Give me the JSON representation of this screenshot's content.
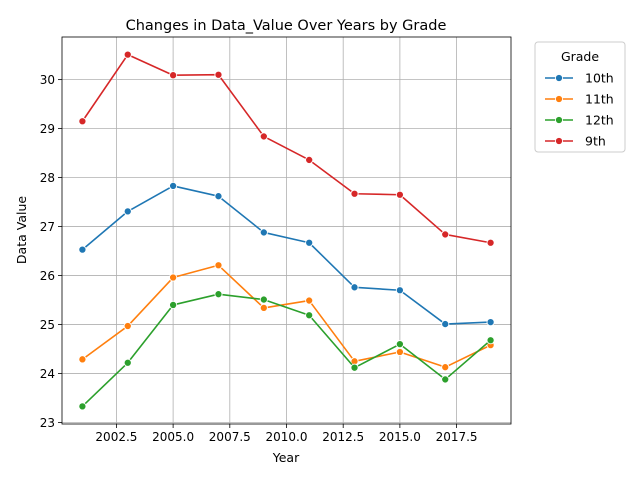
{
  "chart_data": {
    "type": "line",
    "title": "Changes in Data_Value Over Years by Grade",
    "xlabel": "Year",
    "ylabel": "Data Value",
    "x": [
      2001,
      2003,
      2005,
      2007,
      2009,
      2011,
      2013,
      2015,
      2017,
      2019
    ],
    "xlim": [
      2000.1,
      2019.9
    ],
    "ylim": [
      22.97,
      30.87
    ],
    "x_ticks": [
      2002.5,
      2005.0,
      2007.5,
      2010.0,
      2012.5,
      2015.0,
      2017.5
    ],
    "x_tick_labels": [
      "2002.5",
      "2005.0",
      "2007.5",
      "2010.0",
      "2012.5",
      "2015.0",
      "2017.5"
    ],
    "y_ticks": [
      23,
      24,
      25,
      26,
      27,
      28,
      29,
      30
    ],
    "y_tick_labels": [
      "23",
      "24",
      "25",
      "26",
      "27",
      "28",
      "29",
      "30"
    ],
    "grid": true,
    "legend": {
      "title": "Grade",
      "placement": "outside-top-right"
    },
    "series": [
      {
        "name": "10th",
        "color": "#1f77b4",
        "values": [
          26.53,
          27.31,
          27.83,
          27.62,
          26.88,
          26.67,
          25.76,
          25.7,
          25.01,
          25.05
        ]
      },
      {
        "name": "11th",
        "color": "#ff7f0e",
        "values": [
          24.29,
          24.97,
          25.96,
          26.21,
          25.34,
          25.49,
          24.25,
          24.44,
          24.13,
          24.58
        ]
      },
      {
        "name": "12th",
        "color": "#2ca02c",
        "values": [
          23.33,
          24.22,
          25.4,
          25.62,
          25.51,
          25.19,
          24.12,
          24.6,
          23.88,
          24.68
        ]
      },
      {
        "name": "9th",
        "color": "#d62728",
        "values": [
          29.15,
          30.51,
          30.09,
          30.1,
          28.84,
          28.36,
          27.67,
          27.65,
          26.84,
          26.67
        ]
      }
    ]
  }
}
